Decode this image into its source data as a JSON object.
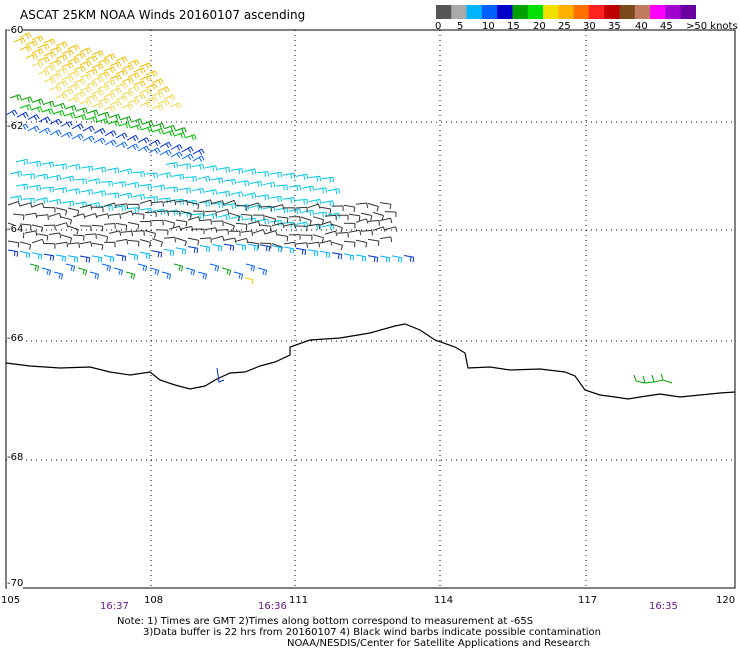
{
  "title": "ASCAT 25KM NOAA Winds 20160107 ascending",
  "colorbar": {
    "colors": [
      "#555555",
      "#aaaaaa",
      "#00b4ff",
      "#0060ff",
      "#0000c8",
      "#00a000",
      "#00e000",
      "#f0e000",
      "#ffb000",
      "#ff7000",
      "#ff2020",
      "#c00000",
      "#7a4a1a",
      "#c07a60",
      "#ff00ff",
      "#a000d0",
      "#6a00a0"
    ],
    "labels": [
      "0",
      "5",
      "10",
      "15",
      "20",
      "25",
      "30",
      "35",
      "40",
      "45",
      ">50 knots"
    ]
  },
  "lat_labels": [
    "-60",
    "-62",
    "-64",
    "-66",
    "-68",
    "-70"
  ],
  "lon_labels": [
    "105",
    "108",
    "111",
    "114",
    "117",
    "120"
  ],
  "times": [
    "16:37",
    "16:36",
    "16:35"
  ],
  "notes": [
    "Note: 1) Times are GMT 2)Times along bottom correspond to measurement at -65S",
    "3)Data buffer is 22 hrs from 20160107 4) Black wind barbs indicate possible contamination",
    "NOAA/NESDIS/Center for Satellite Applications and Research"
  ],
  "legend_colors": {
    "black": "#000000",
    "cyan": "#00c8e6",
    "blue": "#0030d0",
    "green": "#00a000",
    "yellow": "#f0d000"
  }
}
